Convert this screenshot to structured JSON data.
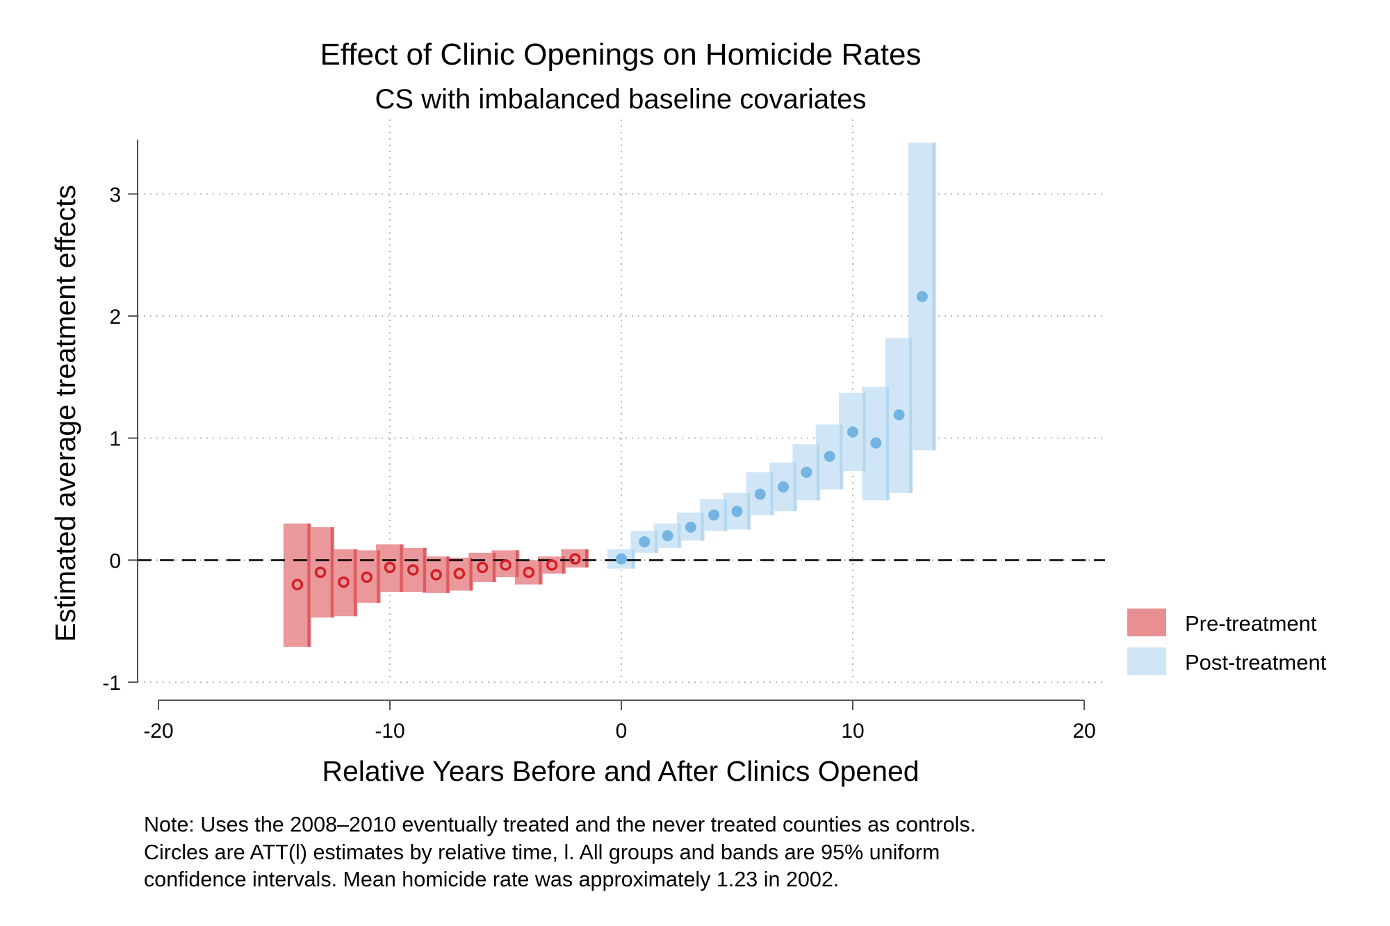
{
  "chart_data": {
    "type": "scatter",
    "title": "Effect of Clinic Openings on Homicide Rates",
    "subtitle": "CS with imbalanced baseline covariates",
    "xlabel": "Relative Years Before and After Clinics Opened",
    "ylabel": "Estimated average treatment effects",
    "xlim": [
      -20,
      20
    ],
    "ylim": [
      -1,
      3.4
    ],
    "xticks": [
      -20,
      -10,
      0,
      10,
      20
    ],
    "yticks": [
      -1,
      0,
      1,
      2,
      3
    ],
    "xtick_labels": [
      "-20",
      "-10",
      "0",
      "10",
      "20"
    ],
    "ytick_labels": [
      "-1",
      "0",
      "1",
      "2",
      "3"
    ],
    "grid": true,
    "reference_line_y": 0,
    "legend_position": "right",
    "series": [
      {
        "name": "Pre-treatment",
        "color": "#e88f92",
        "marker_color": "#d31f26",
        "marker": "hollow-circle",
        "x": [
          -14,
          -13,
          -12,
          -11,
          -10,
          -9,
          -8,
          -7,
          -6,
          -5,
          -4,
          -3,
          -2
        ],
        "y": [
          -0.2,
          -0.1,
          -0.18,
          -0.14,
          -0.06,
          -0.08,
          -0.12,
          -0.11,
          -0.06,
          -0.04,
          -0.1,
          -0.04,
          0.01
        ],
        "ci_lower": [
          -0.71,
          -0.47,
          -0.46,
          -0.35,
          -0.26,
          -0.26,
          -0.27,
          -0.25,
          -0.18,
          -0.14,
          -0.2,
          -0.11,
          -0.06
        ],
        "ci_upper": [
          0.3,
          0.27,
          0.09,
          0.08,
          0.13,
          0.1,
          0.03,
          0.02,
          0.06,
          0.08,
          0.0,
          0.03,
          0.09
        ]
      },
      {
        "name": "Post-treatment",
        "color": "#cde5f5",
        "marker_color": "#73b4e2",
        "marker": "filled-circle",
        "x": [
          0,
          1,
          2,
          3,
          4,
          5,
          6,
          7,
          8,
          9,
          10,
          11,
          12,
          13
        ],
        "y": [
          0.01,
          0.15,
          0.2,
          0.27,
          0.37,
          0.4,
          0.54,
          0.6,
          0.72,
          0.85,
          1.05,
          0.96,
          1.19,
          2.16
        ],
        "ci_lower": [
          -0.07,
          0.06,
          0.1,
          0.16,
          0.24,
          0.25,
          0.37,
          0.4,
          0.49,
          0.58,
          0.73,
          0.49,
          0.55,
          0.9
        ],
        "ci_upper": [
          0.09,
          0.24,
          0.3,
          0.39,
          0.5,
          0.55,
          0.72,
          0.8,
          0.95,
          1.11,
          1.37,
          1.42,
          1.82,
          3.42
        ]
      }
    ]
  },
  "note": {
    "line1": "Note: Uses the 2008–2010 eventually treated and the never treated counties as controls.",
    "line2": "Circles are ATT(l) estimates by relative time, l. All groups and bands are 95% uniform",
    "line3": "confidence intervals. Mean homicide rate was approximately 1.23 in 2002."
  }
}
